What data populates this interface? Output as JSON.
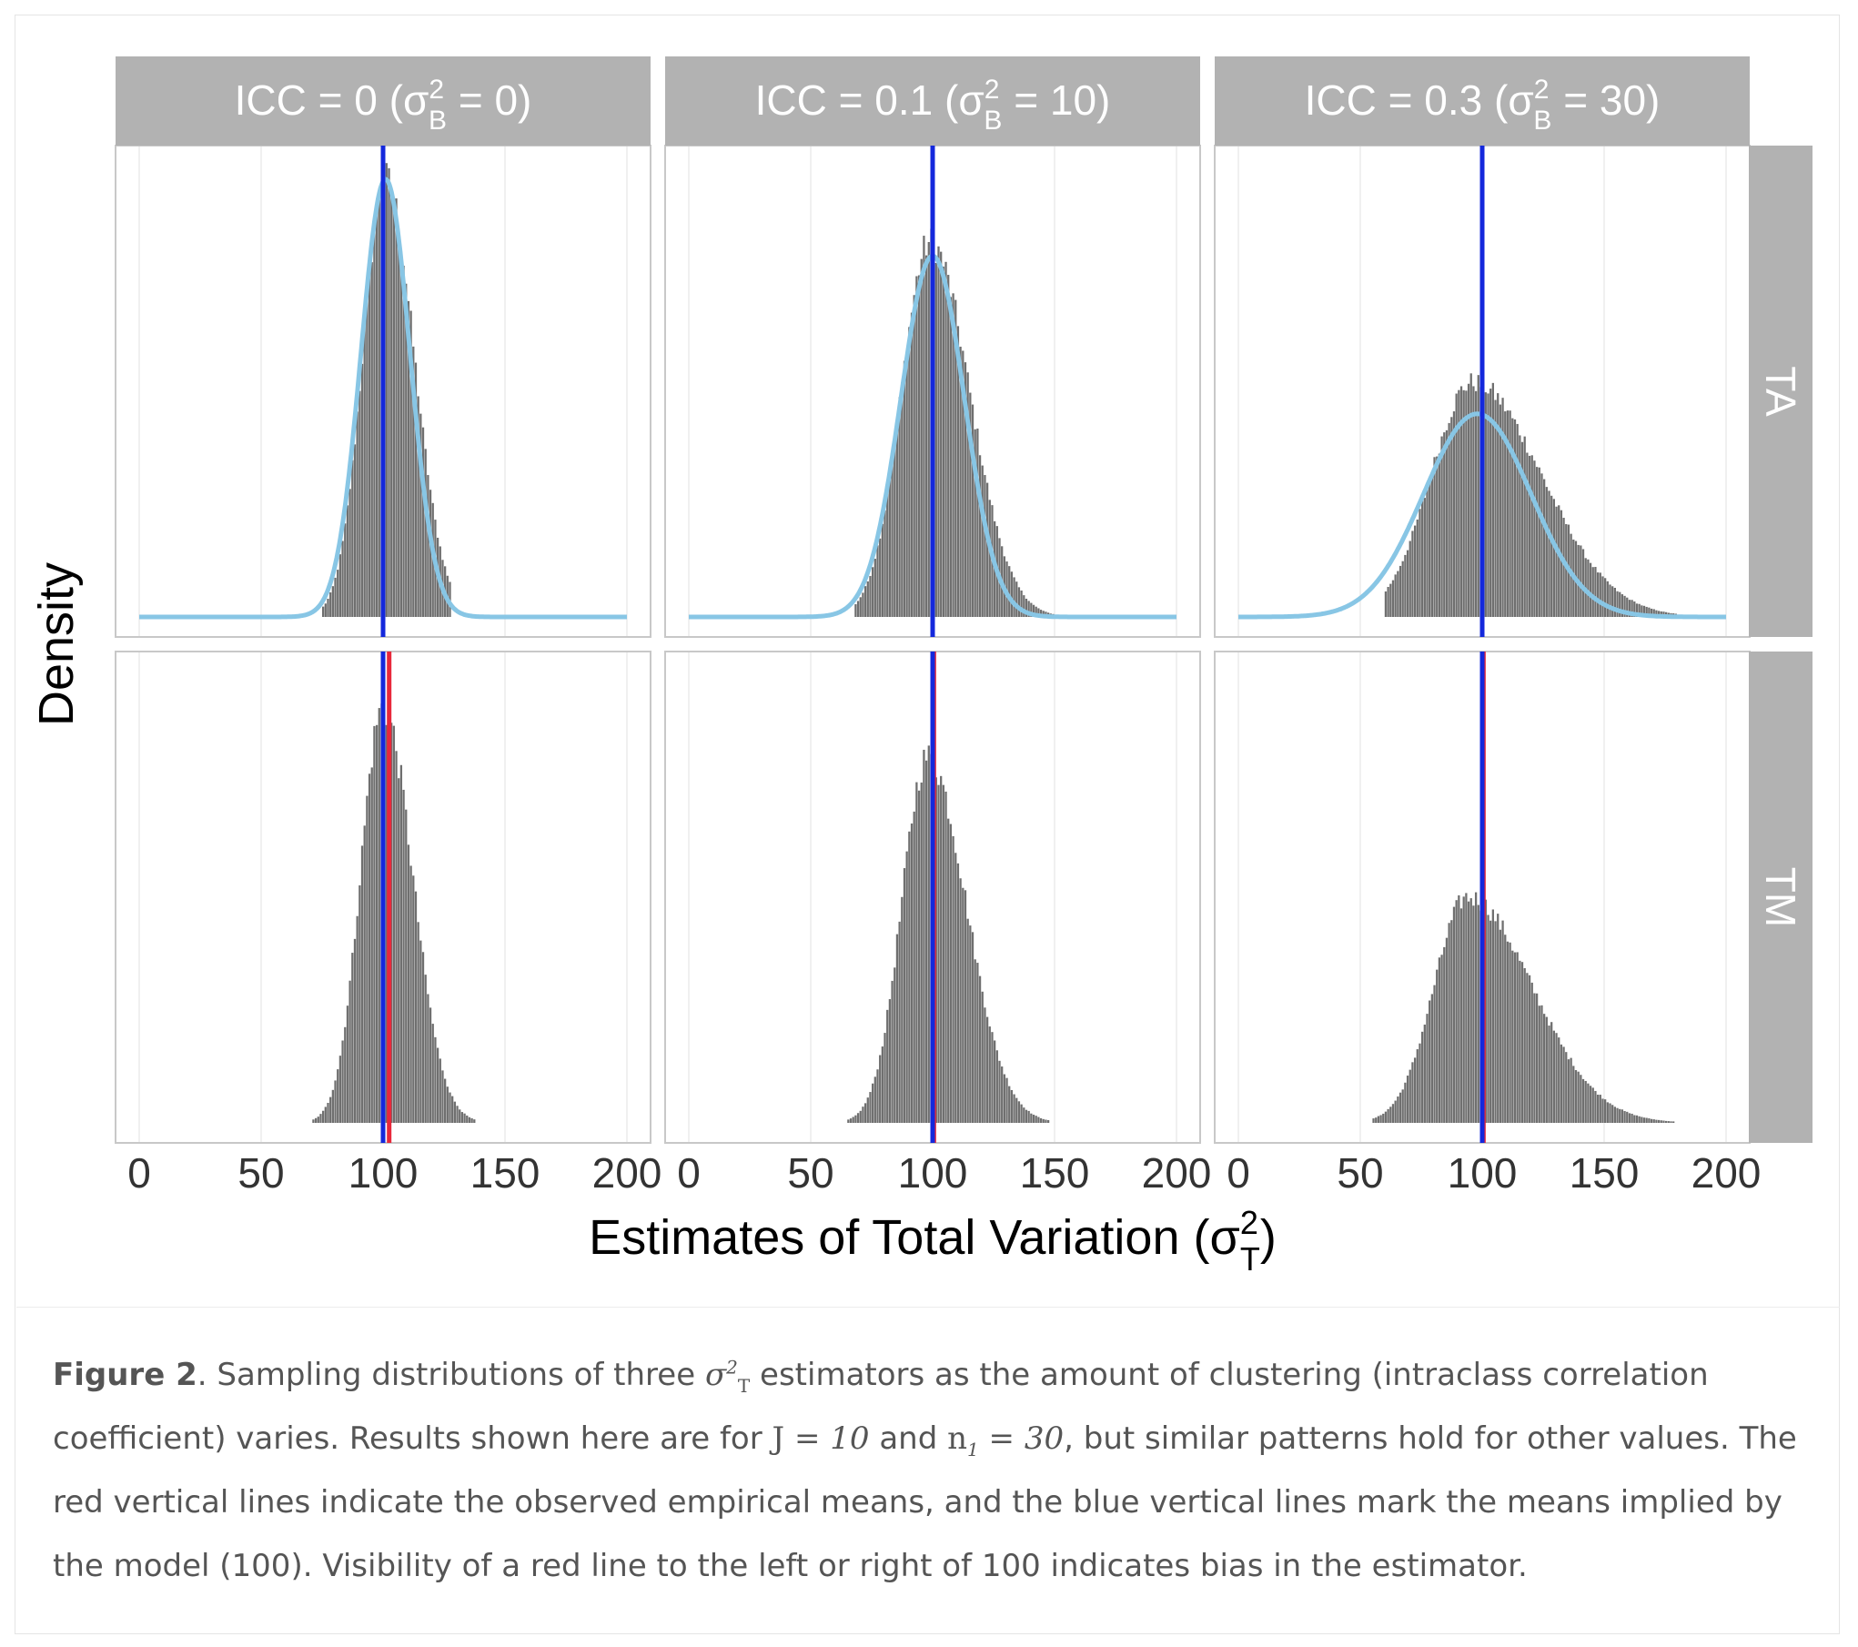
{
  "chart_data": {
    "type": "faceted-histogram",
    "x_ticks": [
      "0",
      "50",
      "100",
      "150",
      "200"
    ],
    "xlim": [
      0,
      200
    ],
    "ylabel": "Density",
    "xlabel": {
      "text": "Estimates of Total Variation (σ",
      "sup": "2",
      "sub": "T",
      "end": ")"
    },
    "columns": [
      {
        "label": "ICC = 0",
        "sigma_text": "(σ",
        "sup": "2",
        "sub": "B",
        "value_text": " = 0)",
        "icc": 0,
        "sigma_b2": 0
      },
      {
        "label": "ICC = 0.1",
        "sigma_text": "(σ",
        "sup": "2",
        "sub": "B",
        "value_text": " = 10)",
        "icc": 0.1,
        "sigma_b2": 10
      },
      {
        "label": "ICC = 0.3",
        "sigma_text": "(σ",
        "sup": "2",
        "sub": "B",
        "value_text": " = 30)",
        "icc": 0.3,
        "sigma_b2": 30
      }
    ],
    "rows": [
      {
        "label": "TA"
      },
      {
        "label": "TM"
      }
    ],
    "panels": [
      {
        "row": "TA",
        "col": 0,
        "model_mean": 100,
        "empirical_mean": 100,
        "hist_mean": 101,
        "hist_sd": 10,
        "skew": 0.5,
        "hist_peak": 0.97,
        "curve_mean": 101,
        "curve_sd": 10,
        "curve_peak": 0.97,
        "hist_range": [
          75,
          128
        ]
      },
      {
        "row": "TA",
        "col": 1,
        "model_mean": 100,
        "empirical_mean": 100,
        "hist_mean": 99,
        "hist_sd": 13,
        "skew": 0.7,
        "hist_peak": 0.83,
        "curve_mean": 100,
        "curve_sd": 13,
        "curve_peak": 0.8,
        "hist_range": [
          68,
          150
        ]
      },
      {
        "row": "TA",
        "col": 2,
        "model_mean": 100,
        "empirical_mean": 100,
        "hist_mean": 96,
        "hist_sd": 20,
        "skew": 1.2,
        "hist_peak": 0.52,
        "curve_mean": 98,
        "curve_sd": 22,
        "curve_peak": 0.45,
        "hist_range": [
          60,
          180
        ]
      },
      {
        "row": "TM",
        "col": 0,
        "model_mean": 100,
        "empirical_mean": 102.5,
        "hist_mean": 100,
        "hist_sd": 10,
        "skew": 0.6,
        "hist_peak": 0.92,
        "hist_range": [
          68,
          138
        ]
      },
      {
        "row": "TM",
        "col": 1,
        "model_mean": 100,
        "empirical_mean": 100.5,
        "hist_mean": 98,
        "hist_sd": 12,
        "skew": 0.9,
        "hist_peak": 0.81,
        "hist_range": [
          65,
          155
        ]
      },
      {
        "row": "TM",
        "col": 2,
        "model_mean": 100,
        "empirical_mean": 100.5,
        "hist_mean": 94,
        "hist_sd": 17,
        "skew": 1.6,
        "hist_peak": 0.5,
        "hist_range": [
          55,
          195
        ]
      }
    ],
    "colors": {
      "histogram": "#6f6f6f",
      "normal_curve": "#88c6e5",
      "model_mean_line": "#1428dc",
      "empirical_mean_line": "#e8283a",
      "strip": "#b2b2b2",
      "strip_text": "#ffffff",
      "grid": "#ebebeb"
    },
    "grid": true
  },
  "caption": {
    "figure_label": "Figure 2",
    "part1": ". Sampling distributions of three ",
    "sigma": "σ",
    "sigma_sup": "2",
    "sigma_sub": "T",
    "part2": " estimators as the amount of clustering (intraclass correlation coefficient) varies. Results shown here are for ",
    "j_text": "J",
    "j_eq": " = ",
    "j_val": "10",
    "part3": " and ",
    "n_text": "n",
    "n_sub": "1",
    "n_eq": " = ",
    "n_val": "30",
    "part4": ", but similar patterns hold for other values. The red vertical lines indicate the observed empirical means, and the blue vertical lines mark the means implied by the model (100). Visibility of a red line to the left or right of 100 indicates bias in the estimator."
  }
}
